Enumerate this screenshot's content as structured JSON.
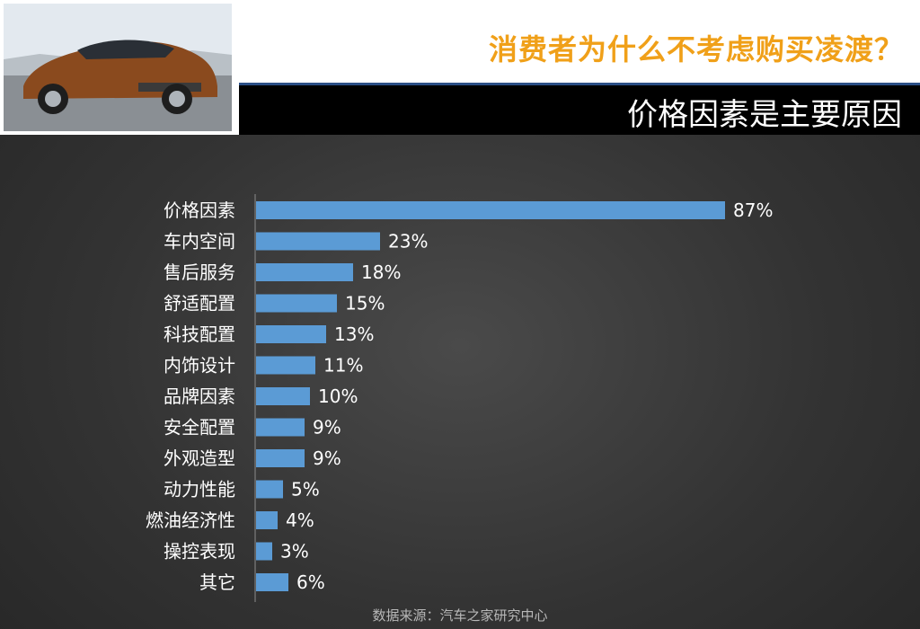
{
  "header": {
    "title": "消费者为什么不考虑购买凌渡？",
    "subtitle": "价格因素是主要原因"
  },
  "colors": {
    "bar": "#5b9bd5",
    "title": "#f0a019",
    "rule": "#2b4f86"
  },
  "source": "数据来源：汽车之家研究中心",
  "chart_data": {
    "type": "bar",
    "orientation": "horizontal",
    "categories": [
      "价格因素",
      "车内空间",
      "售后服务",
      "舒适配置",
      "科技配置",
      "内饰设计",
      "品牌因素",
      "安全配置",
      "外观造型",
      "动力性能",
      "燃油经济性",
      "操控表现",
      "其它"
    ],
    "values": [
      87,
      23,
      18,
      15,
      13,
      11,
      10,
      9,
      9,
      5,
      4,
      3,
      6
    ],
    "value_labels": [
      "87%",
      "23%",
      "18%",
      "15%",
      "13%",
      "11%",
      "10%",
      "9%",
      "9%",
      "5%",
      "4%",
      "3%",
      "6%"
    ],
    "title": "",
    "xlabel": "",
    "ylabel": "",
    "xlim": [
      0,
      100
    ],
    "grid": false,
    "legend": "none"
  }
}
